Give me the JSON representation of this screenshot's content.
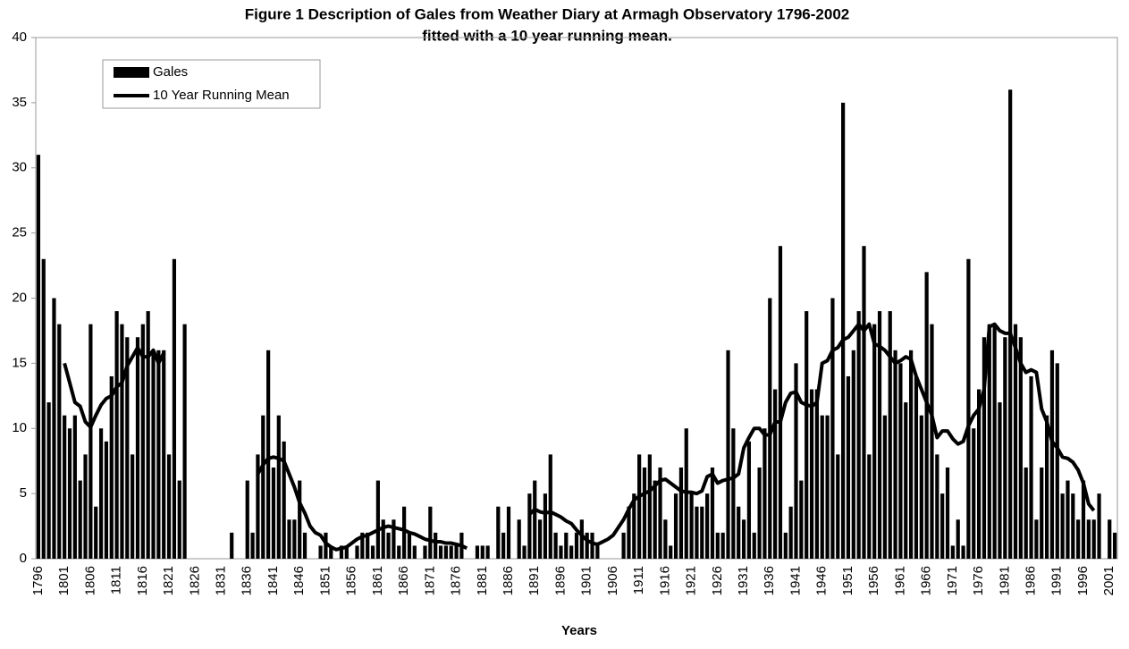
{
  "chart_data": {
    "type": "bar",
    "title": [
      "Figure 1 Description of Gales from Weather Diary at Armagh Observatory 1796-2002",
      "fitted with a 10 year running mean."
    ],
    "x_label": "Years",
    "categories": [
      "1796",
      null,
      null,
      null,
      null,
      "1801",
      null,
      null,
      null,
      null,
      "1806",
      null,
      null,
      null,
      null,
      "1811",
      null,
      null,
      null,
      null,
      "1816",
      null,
      null,
      null,
      null,
      "1821",
      null,
      null,
      null,
      null,
      "1826",
      null,
      null,
      null,
      null,
      "1831",
      null,
      null,
      null,
      null,
      "1836",
      null,
      null,
      null,
      null,
      "1841",
      null,
      null,
      null,
      null,
      "1846",
      null,
      null,
      null,
      null,
      "1851",
      null,
      null,
      null,
      null,
      "1856",
      null,
      null,
      null,
      null,
      "1861",
      null,
      null,
      null,
      null,
      "1866",
      null,
      null,
      null,
      null,
      "1871",
      null,
      null,
      null,
      null,
      "1876",
      null,
      null,
      null,
      null,
      "1881",
      null,
      null,
      null,
      null,
      "1886",
      null,
      null,
      null,
      null,
      "1891",
      null,
      null,
      null,
      null,
      "1896",
      null,
      null,
      null,
      null,
      "1901",
      null,
      null,
      null,
      null,
      "1906",
      null,
      null,
      null,
      null,
      "1911",
      null,
      null,
      null,
      null,
      "1916",
      null,
      null,
      null,
      null,
      "1921",
      null,
      null,
      null,
      null,
      "1926",
      null,
      null,
      null,
      null,
      "1931",
      null,
      null,
      null,
      null,
      "1936",
      null,
      null,
      null,
      null,
      "1941",
      null,
      null,
      null,
      null,
      "1946",
      null,
      null,
      null,
      null,
      "1951",
      null,
      null,
      null,
      null,
      "1956",
      null,
      null,
      null,
      null,
      "1961",
      null,
      null,
      null,
      null,
      "1966",
      null,
      null,
      null,
      null,
      "1971",
      null,
      null,
      null,
      null,
      "1976",
      null,
      null,
      null,
      null,
      "1981",
      null,
      null,
      null,
      null,
      "1986",
      null,
      null,
      null,
      null,
      "1991",
      null,
      null,
      null,
      null,
      "1996",
      null,
      null,
      null,
      null,
      "2001",
      null
    ],
    "series": [
      {
        "name": "Gales",
        "type": "bar",
        "color": "#000000",
        "values": [
          31,
          23,
          12,
          20,
          18,
          11,
          10,
          11,
          6,
          8,
          18,
          4,
          10,
          9,
          14,
          19,
          18,
          17,
          8,
          17,
          18,
          19,
          16,
          16,
          16,
          8,
          23,
          6,
          18,
          0,
          0,
          0,
          0,
          0,
          0,
          0,
          0,
          2,
          0,
          0,
          6,
          2,
          8,
          11,
          16,
          7,
          11,
          9,
          3,
          3,
          6,
          2,
          0,
          0,
          1,
          2,
          1,
          0,
          1,
          1,
          0,
          1,
          2,
          2,
          1,
          6,
          3,
          2,
          3,
          1,
          4,
          2,
          1,
          0,
          1,
          4,
          2,
          1,
          1,
          1,
          1,
          2,
          0,
          0,
          1,
          1,
          1,
          0,
          4,
          2,
          4,
          0,
          3,
          1,
          5,
          6,
          3,
          5,
          8,
          2,
          1,
          2,
          1,
          2,
          3,
          2,
          2,
          1,
          0,
          0,
          0,
          0,
          2,
          4,
          5,
          8,
          7,
          8,
          6,
          7,
          3,
          1,
          5,
          7,
          10,
          5,
          4,
          4,
          5,
          7,
          2,
          2,
          16,
          10,
          4,
          3,
          9,
          2,
          7,
          10,
          20,
          13,
          24,
          2,
          4,
          15,
          6,
          19,
          13,
          13,
          11,
          11,
          20,
          8,
          35,
          14,
          16,
          19,
          24,
          8,
          18,
          19,
          11,
          19,
          16,
          15,
          12,
          16,
          14,
          11,
          22,
          18,
          8,
          5,
          7,
          1,
          3,
          1,
          23,
          10,
          13,
          17,
          18,
          18,
          12,
          17,
          36,
          18,
          17,
          7,
          14,
          3,
          7,
          11,
          16,
          15,
          5,
          6,
          5,
          3,
          6,
          3,
          3,
          5,
          0,
          3,
          2
        ]
      },
      {
        "name": "10 Year Running Mean",
        "type": "line",
        "color": "#000000",
        "values": [
          null,
          null,
          null,
          null,
          null,
          15,
          13.5,
          12,
          11.7,
          10.5,
          10.1,
          11,
          11.8,
          12.3,
          12.5,
          13.2,
          13.5,
          14.8,
          15.5,
          16.2,
          15.5,
          15.5,
          16,
          15,
          15.8,
          null,
          null,
          null,
          null,
          null,
          null,
          null,
          null,
          null,
          null,
          null,
          null,
          null,
          null,
          null,
          null,
          null,
          6.5,
          7.2,
          7.7,
          7.8,
          7.7,
          7.5,
          6.5,
          5.5,
          4.3,
          3.5,
          2.5,
          2.0,
          1.8,
          1.2,
          0.9,
          0.7,
          0.8,
          0.9,
          1.2,
          1.5,
          1.7,
          1.8,
          2.0,
          2.2,
          2.4,
          2.5,
          2.4,
          2.3,
          2.2,
          2.0,
          1.9,
          1.7,
          1.5,
          1.4,
          1.3,
          1.3,
          1.2,
          1.2,
          1.1,
          1.0,
          0.8,
          null,
          null,
          null,
          null,
          null,
          null,
          null,
          null,
          null,
          null,
          null,
          3.4,
          3.8,
          3.6,
          3.5,
          3.6,
          3.4,
          3.2,
          2.9,
          2.7,
          2.2,
          1.8,
          1.4,
          1.2,
          1.1,
          1.3,
          1.5,
          1.8,
          2.4,
          3.0,
          3.8,
          4.5,
          4.8,
          5.0,
          5.2,
          5.6,
          6.0,
          6.1,
          5.8,
          5.5,
          5.2,
          5.1,
          5.1,
          5.0,
          5.2,
          6.3,
          6.5,
          5.8,
          6.0,
          6.1,
          6.2,
          6.5,
          8.5,
          9.3,
          10.0,
          10.0,
          9.5,
          9.5,
          10.5,
          10.5,
          12.0,
          12.7,
          12.8,
          12.0,
          11.8,
          11.7,
          12.0,
          15.0,
          15.2,
          16.0,
          16.2,
          16.8,
          17.0,
          17.5,
          18.0,
          17.5,
          18.0,
          16.5,
          16.3,
          16.0,
          15.5,
          15.0,
          15.2,
          15.5,
          15.3,
          14.0,
          13.0,
          12.0,
          11.0,
          9.3,
          9.8,
          9.8,
          9.2,
          8.8,
          9.0,
          10.2,
          11.0,
          11.5,
          13.0,
          17.8,
          18.0,
          17.5,
          17.3,
          17.3,
          16.2,
          15.0,
          14.3,
          14.5,
          14.3,
          11.5,
          10.5,
          9.0,
          8.5,
          7.8,
          7.7,
          7.4,
          6.8,
          5.8,
          4.2,
          3.7,
          null,
          null,
          null,
          null
        ]
      }
    ],
    "ylim": [
      0,
      40
    ],
    "yticks": [
      0,
      5,
      10,
      15,
      20,
      25,
      30,
      35,
      40
    ],
    "grid": false,
    "legend": "upper left"
  }
}
